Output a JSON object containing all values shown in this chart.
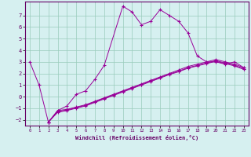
{
  "xlabel": "Windchill (Refroidissement éolien,°C)",
  "background_color": "#d6f0f0",
  "line_color": "#990099",
  "grid_color": "#99ccbb",
  "xlim": [
    -0.5,
    23.5
  ],
  "ylim": [
    -2.5,
    8.2
  ],
  "xticks": [
    0,
    1,
    2,
    3,
    4,
    5,
    6,
    7,
    8,
    9,
    10,
    11,
    12,
    13,
    14,
    15,
    16,
    17,
    18,
    19,
    20,
    21,
    22,
    23
  ],
  "yticks": [
    -2,
    -1,
    0,
    1,
    2,
    3,
    4,
    5,
    6,
    7
  ],
  "series": [
    {
      "x": [
        0,
        1,
        2,
        3,
        4,
        5,
        6,
        7,
        8,
        10,
        11,
        12,
        13,
        14,
        15,
        16,
        17,
        18,
        19,
        20,
        21,
        22,
        23
      ],
      "y": [
        3.0,
        1.0,
        -2.2,
        -1.2,
        -0.8,
        0.2,
        0.5,
        1.5,
        2.7,
        7.8,
        7.3,
        6.2,
        6.5,
        7.5,
        7.0,
        6.5,
        5.5,
        3.5,
        3.0,
        3.0,
        2.8,
        3.0,
        2.5
      ]
    },
    {
      "x": [
        2,
        3,
        4,
        5,
        6,
        7,
        8,
        9,
        10,
        11,
        12,
        13,
        14,
        15,
        16,
        17,
        18,
        19,
        20,
        21,
        22,
        23
      ],
      "y": [
        -2.2,
        -1.2,
        -1.1,
        -0.9,
        -0.7,
        -0.4,
        -0.1,
        0.2,
        0.5,
        0.8,
        1.1,
        1.4,
        1.7,
        2.0,
        2.3,
        2.6,
        2.8,
        3.0,
        3.2,
        3.0,
        2.8,
        2.5
      ]
    },
    {
      "x": [
        2,
        3,
        4,
        5,
        6,
        7,
        8,
        9,
        10,
        11,
        12,
        13,
        14,
        15,
        16,
        17,
        18,
        19,
        20,
        21,
        22,
        23
      ],
      "y": [
        -2.2,
        -1.3,
        -1.15,
        -0.95,
        -0.75,
        -0.45,
        -0.15,
        0.15,
        0.45,
        0.75,
        1.05,
        1.35,
        1.65,
        1.95,
        2.2,
        2.5,
        2.7,
        2.9,
        3.1,
        2.9,
        2.7,
        2.4
      ]
    },
    {
      "x": [
        2,
        3,
        4,
        5,
        6,
        7,
        8,
        9,
        10,
        11,
        12,
        13,
        14,
        15,
        16,
        17,
        18,
        19,
        20,
        21,
        22,
        23
      ],
      "y": [
        -2.2,
        -1.35,
        -1.2,
        -1.0,
        -0.8,
        -0.5,
        -0.2,
        0.1,
        0.4,
        0.7,
        1.0,
        1.3,
        1.6,
        1.9,
        2.15,
        2.45,
        2.65,
        2.85,
        3.05,
        2.85,
        2.65,
        2.35
      ]
    }
  ]
}
